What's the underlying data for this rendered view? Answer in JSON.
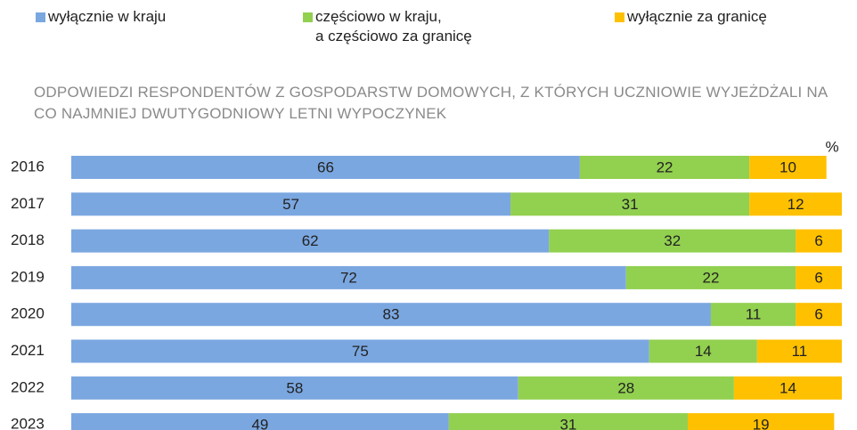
{
  "chart_data": {
    "type": "bar",
    "orientation": "horizontal",
    "stacked": true,
    "title": "ODPOWIEDZI RESPONDENTÓW Z GOSPODARSTW DOMOWYCH, Z KTÓRYCH UCZNIOWIE WYJEŻDŻALI NA CO NAJMNIEJ DWUTYGODNIOWY LETNI WYPOCZYNEK",
    "unit": "%",
    "categories": [
      "2016",
      "2017",
      "2018",
      "2019",
      "2020",
      "2021",
      "2022",
      "2023"
    ],
    "series": [
      {
        "name": "wyłącznie w kraju",
        "color": "#7ba7e0",
        "values": [
          66,
          57,
          62,
          72,
          83,
          75,
          58,
          49
        ]
      },
      {
        "name": "częściowo w kraju,\na częściowo za granicę",
        "color": "#92d050",
        "values": [
          22,
          31,
          32,
          22,
          11,
          14,
          28,
          31
        ]
      },
      {
        "name": "wyłącznie za granicę",
        "color": "#ffc000",
        "values": [
          10,
          12,
          6,
          6,
          6,
          11,
          14,
          19
        ]
      }
    ],
    "xlim": [
      0,
      100
    ]
  }
}
